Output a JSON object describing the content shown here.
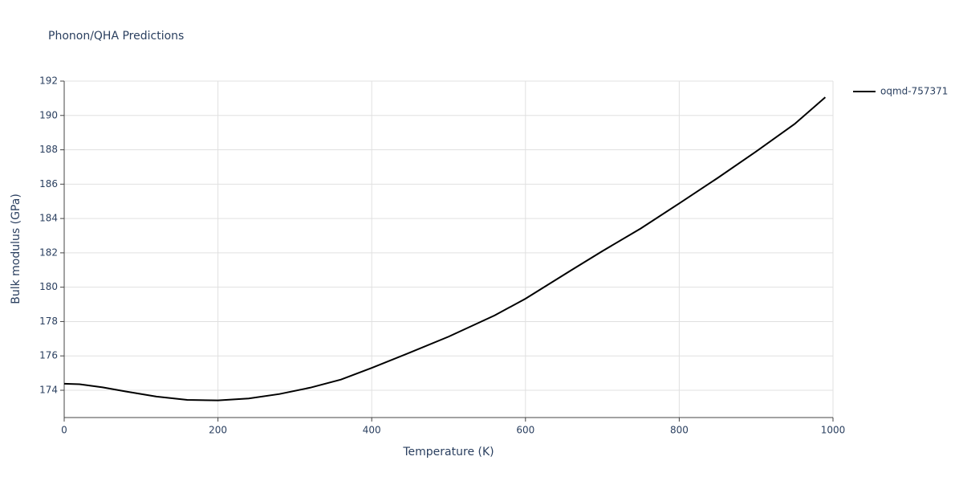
{
  "chart_data": {
    "type": "line",
    "title": "Phonon/QHA Predictions",
    "x_label": "Temperature (K)",
    "y_label": "Bulk modulus (GPa)",
    "x": [
      0,
      20,
      50,
      80,
      120,
      160,
      200,
      240,
      280,
      320,
      360,
      400,
      450,
      500,
      560,
      600,
      660,
      700,
      750,
      800,
      850,
      900,
      950,
      990
    ],
    "series": [
      {
        "name": "oqmd-757371",
        "color": "#000000",
        "values": [
          174.38,
          174.35,
          174.17,
          173.93,
          173.63,
          173.44,
          173.41,
          173.52,
          173.78,
          174.15,
          174.62,
          175.3,
          176.2,
          177.12,
          178.36,
          179.33,
          181.0,
          182.1,
          183.42,
          184.88,
          186.36,
          187.9,
          189.5,
          191.06
        ]
      }
    ],
    "xlim": [
      0,
      1000
    ],
    "xticks": [
      0,
      200,
      400,
      600,
      800,
      1000
    ],
    "ylim": [
      172.41,
      192
    ],
    "yticks": [
      174,
      176,
      178,
      180,
      182,
      184,
      186,
      188,
      190,
      192
    ],
    "grid": true,
    "legend": "right"
  }
}
